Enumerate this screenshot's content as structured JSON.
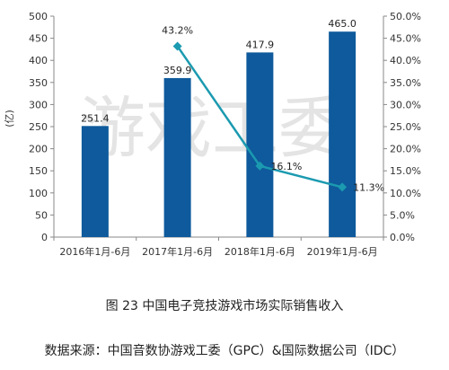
{
  "chart_data": {
    "type": "bar",
    "categories": [
      "2016年1月-6月",
      "2017年1月-6月",
      "2018年1月-6月",
      "2019年1月-6月"
    ],
    "series": [
      {
        "type": "bar",
        "axis": "left",
        "values": [
          251.4,
          359.9,
          417.9,
          465.0
        ],
        "labels": [
          "251.4",
          "359.9",
          "417.9",
          "465.0"
        ],
        "color": "#0e5a9c"
      },
      {
        "type": "line",
        "axis": "right",
        "values": [
          null,
          43.2,
          16.1,
          11.3
        ],
        "labels": [
          "",
          "43.2%",
          "16.1%",
          "11.3%"
        ],
        "color": "#1b9ab0"
      }
    ],
    "ylabel": "(亿)",
    "ylim": [
      0,
      500
    ],
    "y2lim": [
      0,
      50
    ],
    "yticks": [
      "0",
      "50",
      "100",
      "150",
      "200",
      "250",
      "300",
      "350",
      "400",
      "450",
      "500"
    ],
    "y2ticks": [
      "0.0%",
      "5.0%",
      "10.0%",
      "15.0%",
      "20.0%",
      "25.0%",
      "30.0%",
      "35.0%",
      "40.0%",
      "45.0%",
      "50.0%"
    ],
    "grid": false,
    "watermark": "游戏工委"
  },
  "caption": "图 23  中国电子竞技游戏市场实际销售收入",
  "source": "数据来源：中国音数协游戏工委（GPC）&国际数据公司（IDC）"
}
